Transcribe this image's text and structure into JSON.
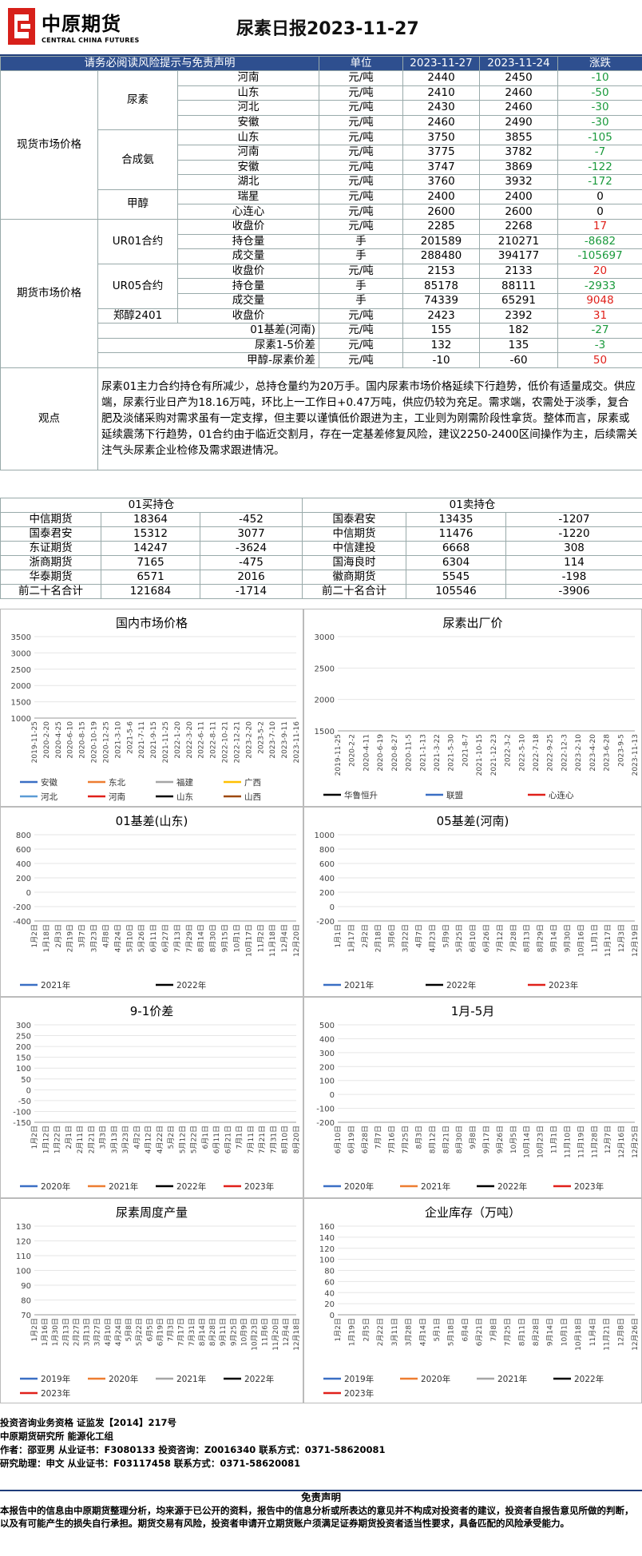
{
  "header": {
    "brand_cn": "中原期货",
    "brand_en": "CENTRAL CHINA FUTURES",
    "title": "尿素日报2023-11-27"
  },
  "table_head": [
    "请务必阅读风险提示与免责声明",
    "单位",
    "2023-11-27",
    "2023-11-24",
    "涨跌"
  ],
  "spot": {
    "label": "现货市场价格",
    "groups": [
      {
        "name": "尿素",
        "rows": [
          [
            "河南",
            "元/吨",
            "2440",
            "2450",
            "-10"
          ],
          [
            "山东",
            "元/吨",
            "2410",
            "2460",
            "-50"
          ],
          [
            "河北",
            "元/吨",
            "2430",
            "2460",
            "-30"
          ],
          [
            "安徽",
            "元/吨",
            "2460",
            "2490",
            "-30"
          ]
        ]
      },
      {
        "name": "合成氨",
        "rows": [
          [
            "山东",
            "元/吨",
            "3750",
            "3855",
            "-105"
          ],
          [
            "河南",
            "元/吨",
            "3775",
            "3782",
            "-7"
          ],
          [
            "安徽",
            "元/吨",
            "3747",
            "3869",
            "-122"
          ],
          [
            "湖北",
            "元/吨",
            "3760",
            "3932",
            "-172"
          ]
        ]
      },
      {
        "name": "甲醇",
        "rows": [
          [
            "瑞星",
            "元/吨",
            "2400",
            "2400",
            "0"
          ],
          [
            "心连心",
            "元/吨",
            "2600",
            "2600",
            "0"
          ]
        ]
      }
    ]
  },
  "futures": {
    "label": "期货市场价格",
    "groups": [
      {
        "name": "UR01合约",
        "rows": [
          [
            "收盘价",
            "元/吨",
            "2285",
            "2268",
            "17"
          ],
          [
            "持仓量",
            "手",
            "201589",
            "210271",
            "-8682"
          ],
          [
            "成交量",
            "手",
            "288480",
            "394177",
            "-105697"
          ]
        ]
      },
      {
        "name": "UR05合约",
        "rows": [
          [
            "收盘价",
            "元/吨",
            "2153",
            "2133",
            "20"
          ],
          [
            "持仓量",
            "手",
            "85178",
            "88111",
            "-2933"
          ],
          [
            "成交量",
            "手",
            "74339",
            "65291",
            "9048"
          ]
        ]
      },
      {
        "name": "郑醇2401",
        "rows": [
          [
            "收盘价",
            "元/吨",
            "2423",
            "2392",
            "31"
          ]
        ]
      }
    ],
    "extra": [
      [
        "01基差(河南)",
        "元/吨",
        "155",
        "182",
        "-27"
      ],
      [
        "尿素1-5价差",
        "元/吨",
        "132",
        "135",
        "-3"
      ],
      [
        "甲醇-尿素价差",
        "元/吨",
        "-10",
        "-60",
        "50"
      ]
    ]
  },
  "observation": {
    "label": "观点",
    "text": "尿素01主力合约持仓有所减少，总持仓量约为20万手。国内尿素市场价格延续下行趋势，低价有适量成交。供应端，尿素行业日产为18.16万吨，环比上一工作日+0.47万吨，供应仍较为充足。需求端，农需处于淡季，复合肥及淡储采购对需求虽有一定支撑，但主要以谨慎低价跟进为主，工业则为刚需阶段性拿货。整体而言，尿素或延续震荡下行趋势，01合约由于临近交割月，存在一定基差修复风险，建议2250-2400区间操作为主，后续需关注气头尿素企业检修及需求跟进情况。"
  },
  "positions": {
    "buy_title": "01买持仓",
    "sell_title": "01卖持仓",
    "rows": [
      [
        "中信期货",
        "18364",
        "-452",
        "国泰君安",
        "13435",
        "-1207"
      ],
      [
        "国泰君安",
        "15312",
        "3077",
        "中信期货",
        "11476",
        "-1220"
      ],
      [
        "东证期货",
        "14247",
        "-3624",
        "中信建投",
        "6668",
        "308"
      ],
      [
        "浙商期货",
        "7165",
        "-475",
        "国海良时",
        "6304",
        "114"
      ],
      [
        "华泰期货",
        "6571",
        "2016",
        "徽商期货",
        "5545",
        "-198"
      ],
      [
        "前二十名合计",
        "121684",
        "-1714",
        "前二十名合计",
        "105546",
        "-3906"
      ]
    ]
  },
  "charts": [
    {
      "id": "c1",
      "title": "国内市场价格",
      "yticks": [
        "3500",
        "3000",
        "2500",
        "2000",
        "1500",
        "1000"
      ],
      "xticks": [
        "2019-11-25",
        "2020-2-20",
        "2020-4-25",
        "2020-6-10",
        "2020-8-15",
        "2020-10-19",
        "2020-12-25",
        "2021-3-10",
        "2021-5-6",
        "2021-7-11",
        "2021-9-15",
        "2021-11-25",
        "2022-1-20",
        "2022-3-20",
        "2022-6-11",
        "2022-8-11",
        "2022-10-21",
        "2022-12-21",
        "2023-2-20",
        "2023-5-2",
        "2023-7-10",
        "2023-9-11",
        "2023-11-16"
      ],
      "legend": [
        [
          "安徽",
          "#3a6fc4"
        ],
        [
          "东北",
          "#ed7d31"
        ],
        [
          "福建",
          "#a5a5a5"
        ],
        [
          "广西",
          "#ffc000"
        ],
        [
          "河北",
          "#5b9bd5"
        ],
        [
          "河南",
          "#e0201a"
        ],
        [
          "山东",
          "#000000"
        ],
        [
          "山西",
          "#9e480e"
        ]
      ]
    },
    {
      "id": "c2",
      "title": "尿素出厂价",
      "yticks": [
        "3000",
        "2500",
        "2000",
        "1500"
      ],
      "xticks": [
        "2019-11-25",
        "2020-2-2",
        "2020-4-11",
        "2020-6-19",
        "2020-8-27",
        "2020-11-5",
        "2021-1-13",
        "2021-3-22",
        "2021-5-30",
        "2021-8-7",
        "2021-10-15",
        "2021-12-23",
        "2022-3-2",
        "2022-5-10",
        "2022-7-18",
        "2022-9-25",
        "2022-12-3",
        "2023-2-10",
        "2023-4-20",
        "2023-6-28",
        "2023-9-5",
        "2023-11-13"
      ],
      "legend": [
        [
          "华鲁恒升",
          "#000000"
        ],
        [
          "联盟",
          "#3a6fc4"
        ],
        [
          "心连心",
          "#e0201a"
        ]
      ]
    },
    {
      "id": "c3",
      "title": "01基差(山东)",
      "yticks": [
        "800",
        "600",
        "400",
        "200",
        "0",
        "-200",
        "-400"
      ],
      "xticks": [
        "1月2日",
        "1月18日",
        "2月3日",
        "2月19日",
        "3月7日",
        "3月23日",
        "4月8日",
        "4月24日",
        "5月10日",
        "5月26日",
        "6月11日",
        "6月27日",
        "7月13日",
        "7月29日",
        "8月14日",
        "8月30日",
        "9月15日",
        "10月1日",
        "10月17日",
        "11月2日",
        "11月18日",
        "12月4日",
        "12月20日"
      ],
      "legend": [
        [
          "2021年",
          "#3a6fc4"
        ],
        [
          "2022年",
          "#000000"
        ]
      ]
    },
    {
      "id": "c4",
      "title": "05基差(河南)",
      "yticks": [
        "1000",
        "800",
        "600",
        "400",
        "200",
        "0",
        "-200"
      ],
      "xticks": [
        "1月1日",
        "1月17日",
        "2月2日",
        "2月18日",
        "3月6日",
        "3月22日",
        "4月7日",
        "4月23日",
        "5月9日",
        "5月25日",
        "6月10日",
        "6月26日",
        "7月12日",
        "7月28日",
        "8月13日",
        "8月29日",
        "9月14日",
        "9月30日",
        "10月16日",
        "11月1日",
        "11月17日",
        "12月3日",
        "12月19日"
      ],
      "legend": [
        [
          "2021年",
          "#3a6fc4"
        ],
        [
          "2022年",
          "#000000"
        ],
        [
          "2023年",
          "#e0201a"
        ]
      ]
    },
    {
      "id": "c5",
      "title": "9-1价差",
      "yticks": [
        "300",
        "250",
        "200",
        "150",
        "100",
        "50",
        "0",
        "-50",
        "-100",
        "-150"
      ],
      "xticks": [
        "1月2日",
        "1月12日",
        "1月22日",
        "2月1日",
        "2月11日",
        "2月21日",
        "3月3日",
        "3月13日",
        "3月23日",
        "4月2日",
        "4月12日",
        "4月22日",
        "5月2日",
        "5月12日",
        "5月22日",
        "6月1日",
        "6月11日",
        "6月21日",
        "7月1日",
        "7月11日",
        "7月21日",
        "7月31日",
        "8月10日",
        "8月20日"
      ],
      "legend": [
        [
          "2020年",
          "#3a6fc4"
        ],
        [
          "2021年",
          "#ed7d31"
        ],
        [
          "2022年",
          "#000000"
        ],
        [
          "2023年",
          "#e0201a"
        ]
      ]
    },
    {
      "id": "c6",
      "title": "1月-5月",
      "yticks": [
        "500",
        "400",
        "300",
        "200",
        "100",
        "0",
        "-100",
        "-200"
      ],
      "xticks": [
        "6月10日",
        "6月19日",
        "6月28日",
        "7月7日",
        "7月16日",
        "7月25日",
        "8月3日",
        "8月12日",
        "8月21日",
        "8月30日",
        "9月8日",
        "9月17日",
        "9月26日",
        "10月5日",
        "10月14日",
        "10月23日",
        "11月1日",
        "11月10日",
        "11月19日",
        "11月28日",
        "12月7日",
        "12月16日",
        "12月25日"
      ],
      "legend": [
        [
          "2020年",
          "#3a6fc4"
        ],
        [
          "2021年",
          "#ed7d31"
        ],
        [
          "2022年",
          "#000000"
        ],
        [
          "2023年",
          "#e0201a"
        ]
      ]
    },
    {
      "id": "c7",
      "title": "尿素周度产量",
      "yticks": [
        "130",
        "120",
        "110",
        "100",
        "90",
        "80",
        "70"
      ],
      "xticks": [
        "1月2日",
        "1月16日",
        "1月30日",
        "2月13日",
        "2月27日",
        "3月13日",
        "3月27日",
        "4月10日",
        "4月24日",
        "5月8日",
        "5月22日",
        "6月5日",
        "6月19日",
        "7月3日",
        "7月17日",
        "7月31日",
        "8月14日",
        "8月28日",
        "9月11日",
        "9月25日",
        "10月9日",
        "10月23日",
        "11月6日",
        "11月20日",
        "12月4日",
        "12月18日"
      ],
      "legend": [
        [
          "2019年",
          "#3a6fc4"
        ],
        [
          "2020年",
          "#ed7d31"
        ],
        [
          "2021年",
          "#a5a5a5"
        ],
        [
          "2022年",
          "#000000"
        ],
        [
          "2023年",
          "#e0201a"
        ]
      ]
    },
    {
      "id": "c8",
      "title": "企业库存（万吨）",
      "yticks": [
        "160",
        "140",
        "120",
        "100",
        "80",
        "60",
        "40",
        "20",
        "0"
      ],
      "xticks": [
        "1月2日",
        "1月19日",
        "2月5日",
        "2月22日",
        "3月11日",
        "3月28日",
        "4月14日",
        "5月1日",
        "5月18日",
        "6月4日",
        "6月21日",
        "7月8日",
        "7月25日",
        "8月11日",
        "8月28日",
        "9月14日",
        "10月1日",
        "10月18日",
        "11月4日",
        "11月21日",
        "12月8日",
        "12月26日"
      ],
      "legend": [
        [
          "2019年",
          "#3a6fc4"
        ],
        [
          "2020年",
          "#ed7d31"
        ],
        [
          "2021年",
          "#a5a5a5"
        ],
        [
          "2022年",
          "#000000"
        ],
        [
          "2023年",
          "#e0201a"
        ]
      ]
    }
  ],
  "footer": {
    "line1": "投资咨询业务资格   证监发【2014】217号",
    "line2": "中原期货研究所   能源化工组",
    "line3": "作者：邵亚男          从业证书：F3080133     投资咨询：Z0016340      联系方式：0371-58620081",
    "line4": "研究助理：申文        从业证书：F03117458    联系方式：0371-58620081"
  },
  "disclaimer": {
    "title": "免责声明",
    "text": "本报告中的信息由中原期货整理分析，均来源于已公开的资料，报告中的信息分析或所表达的意见并不构成对投资者的建议，投资者自报告意见所做的判断，以及有可能产生的损失自行承担。期货交易有风险，投资者申请开立期货账户须满足证券期货投资者适当性要求，具备匹配的风险承受能力。"
  }
}
